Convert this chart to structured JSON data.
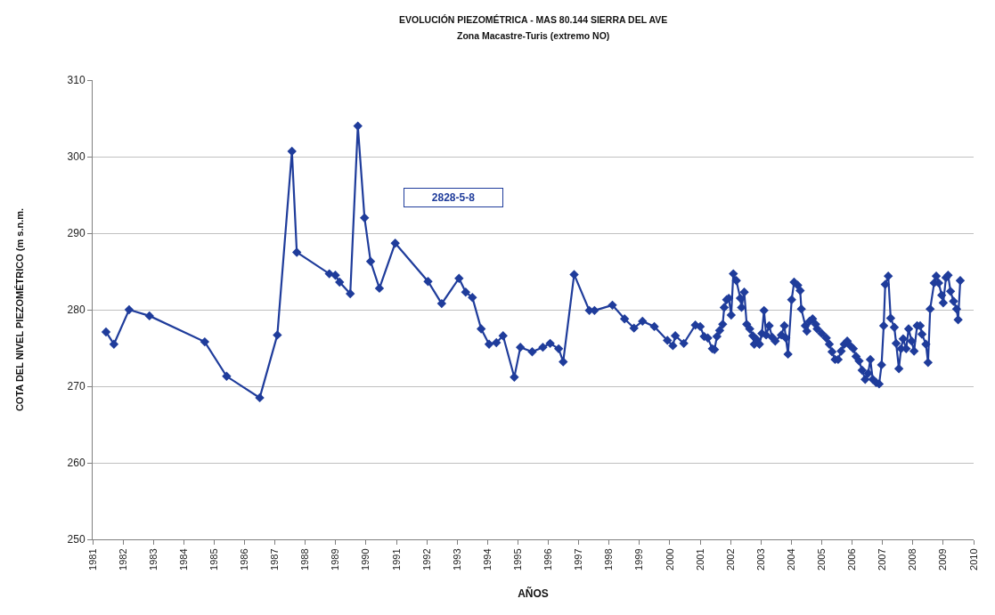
{
  "chart_data": {
    "type": "line",
    "title": "EVOLUCIÓN PIEZOMÉTRICA - MAS 80.144 SIERRA DEL AVE",
    "subtitle": "Zona Macastre-Turis (extremo NO)",
    "xlabel": "AÑOS",
    "ylabel": "COTA DEL NIVEL PIEZOMÉTRICO (m s.n.m.",
    "x": [
      1981.44,
      1981.7,
      1982.2,
      1982.87,
      1984.69,
      1985.41,
      1986.5,
      1987.08,
      1987.56,
      1987.72,
      1988.79,
      1988.99,
      1989.13,
      1989.48,
      1989.73,
      1989.95,
      1990.15,
      1990.44,
      1990.96,
      1992.04,
      1992.49,
      1993.06,
      1993.28,
      1993.5,
      1993.79,
      1994.05,
      1994.29,
      1994.51,
      1994.88,
      1995.08,
      1995.47,
      1995.82,
      1996.06,
      1996.34,
      1996.49,
      1996.85,
      1997.35,
      1997.52,
      1998.11,
      1998.51,
      1998.82,
      1999.1,
      1999.49,
      1999.92,
      2000.1,
      2000.18,
      2000.46,
      2000.84,
      2001.0,
      2001.13,
      2001.25,
      2001.4,
      2001.47,
      2001.55,
      2001.64,
      2001.74,
      2001.79,
      2001.87,
      2001.94,
      2002.02,
      2002.09,
      2002.19,
      2002.32,
      2002.36,
      2002.45,
      2002.53,
      2002.63,
      2002.73,
      2002.78,
      2002.86,
      2002.95,
      2003.03,
      2003.1,
      2003.17,
      2003.27,
      2003.37,
      2003.47,
      2003.67,
      2003.77,
      2003.82,
      2003.89,
      2004.01,
      2004.09,
      2004.21,
      2004.29,
      2004.33,
      2004.46,
      2004.51,
      2004.6,
      2004.7,
      2004.8,
      2004.85,
      2005.0,
      2005.15,
      2005.25,
      2005.34,
      2005.44,
      2005.54,
      2005.64,
      2005.74,
      2005.84,
      2005.94,
      2006.04,
      2006.13,
      2006.23,
      2006.33,
      2006.43,
      2006.53,
      2006.6,
      2006.68,
      2006.79,
      2006.89,
      2006.97,
      2007.04,
      2007.09,
      2007.19,
      2007.27,
      2007.39,
      2007.45,
      2007.54,
      2007.61,
      2007.68,
      2007.78,
      2007.86,
      2007.96,
      2008.04,
      2008.14,
      2008.24,
      2008.3,
      2008.43,
      2008.5,
      2008.57,
      2008.7,
      2008.77,
      2008.85,
      2008.95,
      2009.0,
      2009.09,
      2009.16,
      2009.24,
      2009.34,
      2009.44,
      2009.49,
      2009.56
    ],
    "series": [
      {
        "name": "2828-5-8",
        "color": "#1f3c9b",
        "values": [
          277.1,
          275.5,
          280.0,
          279.2,
          275.8,
          271.3,
          268.5,
          276.7,
          300.7,
          287.5,
          284.7,
          284.5,
          283.6,
          282.1,
          304.0,
          292.0,
          286.3,
          282.8,
          288.7,
          283.7,
          280.8,
          284.1,
          282.3,
          281.6,
          277.5,
          275.5,
          275.7,
          276.6,
          271.2,
          275.1,
          274.5,
          275.1,
          275.6,
          274.9,
          273.2,
          284.6,
          279.9,
          279.9,
          280.6,
          278.8,
          277.6,
          278.5,
          277.8,
          276.0,
          275.3,
          276.6,
          275.6,
          278.0,
          277.8,
          276.5,
          276.3,
          274.9,
          274.8,
          276.5,
          277.3,
          278.1,
          280.3,
          281.3,
          281.5,
          279.3,
          284.7,
          283.8,
          281.5,
          280.3,
          282.3,
          278.1,
          277.5,
          276.6,
          275.5,
          276.1,
          275.5,
          276.9,
          279.9,
          276.7,
          277.9,
          276.4,
          275.9,
          276.7,
          277.9,
          276.3,
          274.2,
          281.3,
          283.6,
          283.2,
          282.5,
          280.1,
          277.9,
          277.2,
          278.5,
          278.8,
          278.1,
          277.5,
          276.9,
          276.3,
          275.5,
          274.5,
          273.5,
          273.5,
          274.6,
          275.5,
          275.9,
          275.3,
          274.9,
          273.9,
          273.3,
          272.1,
          270.9,
          271.7,
          273.5,
          270.9,
          270.5,
          270.3,
          272.8,
          277.9,
          283.3,
          284.4,
          278.9,
          277.7,
          275.6,
          272.3,
          274.9,
          276.2,
          274.9,
          277.5,
          275.9,
          274.6,
          277.9,
          277.9,
          276.8,
          275.5,
          273.1,
          280.1,
          283.5,
          284.4,
          283.5,
          281.9,
          280.9,
          284.2,
          284.5,
          282.4,
          281.1,
          280.1,
          278.7,
          283.8
        ]
      }
    ],
    "xlim": [
      1981,
      2010
    ],
    "xticks": [
      1981,
      1982,
      1983,
      1984,
      1985,
      1986,
      1987,
      1988,
      1989,
      1990,
      1991,
      1992,
      1993,
      1994,
      1995,
      1996,
      1997,
      1998,
      1999,
      2000,
      2001,
      2002,
      2003,
      2004,
      2005,
      2006,
      2007,
      2008,
      2009,
      2010
    ],
    "ylim": [
      250,
      310
    ],
    "yticks": [
      250,
      260,
      270,
      280,
      290,
      300,
      310
    ],
    "grid": "y",
    "legend": "top",
    "marker": "diamond",
    "line_style": "solid"
  }
}
